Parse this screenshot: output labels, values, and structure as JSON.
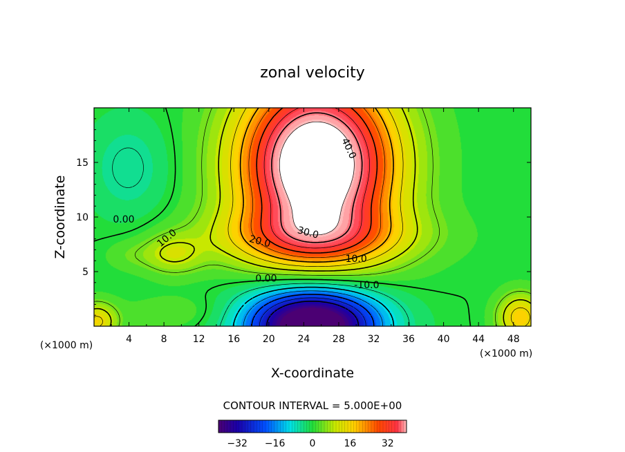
{
  "chart_data": {
    "type": "contour",
    "title": "zonal velocity",
    "xlabel": "X-coordinate",
    "ylabel": "Z-coordinate",
    "x_unit_left": "(×1000 m)",
    "x_unit_right": "(×1000 m)",
    "xlim": [
      0,
      50
    ],
    "ylim": [
      0,
      20
    ],
    "xticks": [
      4,
      8,
      12,
      16,
      20,
      24,
      28,
      32,
      36,
      40,
      44,
      48
    ],
    "yticks": [
      5,
      10,
      15
    ],
    "contour_interval_text": "CONTOUR INTERVAL = 5.000E+00",
    "contour_labels": [
      {
        "text": "40.0",
        "x": 29.2,
        "y": 16.3,
        "angle": 65
      },
      {
        "text": "30.0",
        "x": 24.5,
        "y": 8.6,
        "angle": 15
      },
      {
        "text": "20.0",
        "x": 19.0,
        "y": 7.8,
        "angle": 15
      },
      {
        "text": "10.0",
        "x": 8.3,
        "y": 8.1,
        "angle": -40
      },
      {
        "text": "10.0",
        "x": 30.0,
        "y": 6.2,
        "angle": 0
      },
      {
        "text": "0.00",
        "x": 3.4,
        "y": 9.8,
        "angle": 0
      },
      {
        "text": "0.00",
        "x": 19.7,
        "y": 4.4,
        "angle": 0
      },
      {
        "text": "-10.0",
        "x": 31.2,
        "y": 3.8,
        "angle": 0
      }
    ],
    "field_features": [
      {
        "name": "jet core",
        "x": 25.5,
        "y": 14.5,
        "peak": 45
      },
      {
        "name": "lower reverse flow",
        "x": 25.0,
        "y": 0.3,
        "peak": -35
      },
      {
        "name": "secondary positive",
        "x": 9.0,
        "y": 6.5,
        "peak": 12
      },
      {
        "name": "upper-left weak negative",
        "x": 4.0,
        "y": 14.5,
        "peak": -4
      },
      {
        "name": "lower-left positive",
        "x": 0.5,
        "y": 0.5,
        "peak": 18
      },
      {
        "name": "lower-right positive",
        "x": 48.5,
        "y": 0.8,
        "peak": 18
      }
    ],
    "colorbar": {
      "range": [
        -40,
        40
      ],
      "ticks": [
        -32,
        -16,
        0,
        16,
        32
      ],
      "tick_labels": [
        "−32",
        "−16",
        "0",
        "16",
        "32"
      ]
    }
  }
}
